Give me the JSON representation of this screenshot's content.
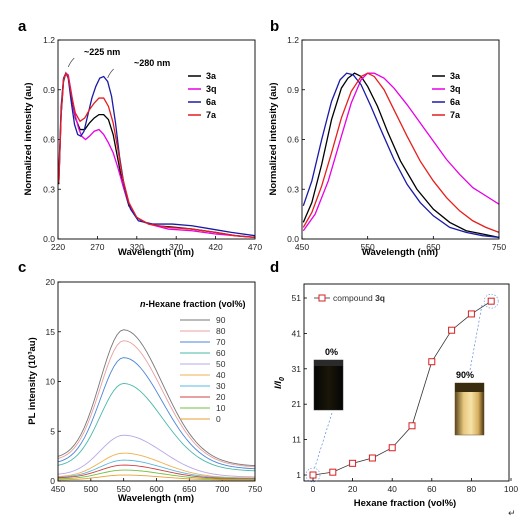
{
  "panels": [
    "a",
    "b",
    "c",
    "d"
  ],
  "corner_mark": "↵",
  "chart_data": [
    {
      "panel": "a",
      "type": "line",
      "xlabel": "Wavelength (nm)",
      "ylabel": "Normalized intensity (au)",
      "xlim": [
        220,
        470
      ],
      "ylim": [
        0,
        1.2
      ],
      "xticks": [
        220,
        270,
        320,
        370,
        420,
        470
      ],
      "yticks": [
        0.0,
        0.3,
        0.6,
        0.9,
        1.2
      ],
      "annotations": [
        "~225 nm",
        "~280 nm"
      ],
      "annotation_x": [
        233,
        283
      ],
      "legend_position": "top-right",
      "series": [
        {
          "name": "3a",
          "color": "#000000",
          "points": [
            [
              221,
              0.33
            ],
            [
              224,
              0.75
            ],
            [
              227,
              0.95
            ],
            [
              230,
              1.0
            ],
            [
              233,
              0.98
            ],
            [
              237,
              0.86
            ],
            [
              242,
              0.73
            ],
            [
              248,
              0.66
            ],
            [
              254,
              0.66
            ],
            [
              260,
              0.7
            ],
            [
              266,
              0.73
            ],
            [
              272,
              0.75
            ],
            [
              278,
              0.75
            ],
            [
              284,
              0.72
            ],
            [
              290,
              0.63
            ],
            [
              296,
              0.48
            ],
            [
              302,
              0.33
            ],
            [
              310,
              0.2
            ],
            [
              320,
              0.13
            ],
            [
              330,
              0.1
            ],
            [
              345,
              0.08
            ],
            [
              370,
              0.07
            ],
            [
              390,
              0.06
            ],
            [
              420,
              0.04
            ],
            [
              445,
              0.02
            ],
            [
              470,
              0.01
            ]
          ]
        },
        {
          "name": "3q",
          "color": "#e600e6",
          "points": [
            [
              221,
              0.34
            ],
            [
              224,
              0.76
            ],
            [
              227,
              0.96
            ],
            [
              230,
              1.0
            ],
            [
              233,
              0.99
            ],
            [
              237,
              0.88
            ],
            [
              241,
              0.76
            ],
            [
              246,
              0.67
            ],
            [
              250,
              0.62
            ],
            [
              255,
              0.6
            ],
            [
              260,
              0.62
            ],
            [
              266,
              0.65
            ],
            [
              272,
              0.66
            ],
            [
              278,
              0.63
            ],
            [
              284,
              0.58
            ],
            [
              290,
              0.52
            ],
            [
              296,
              0.43
            ],
            [
              302,
              0.33
            ],
            [
              310,
              0.21
            ],
            [
              320,
              0.13
            ],
            [
              335,
              0.09
            ],
            [
              360,
              0.06
            ],
            [
              390,
              0.05
            ],
            [
              420,
              0.03
            ],
            [
              445,
              0.02
            ],
            [
              470,
              0.01
            ]
          ]
        },
        {
          "name": "6a",
          "color": "#1a1aa6",
          "points": [
            [
              221,
              0.38
            ],
            [
              224,
              0.8
            ],
            [
              227,
              0.97
            ],
            [
              230,
              1.0
            ],
            [
              233,
              0.97
            ],
            [
              237,
              0.82
            ],
            [
              241,
              0.69
            ],
            [
              245,
              0.63
            ],
            [
              249,
              0.62
            ],
            [
              253,
              0.65
            ],
            [
              258,
              0.75
            ],
            [
              263,
              0.85
            ],
            [
              268,
              0.92
            ],
            [
              273,
              0.97
            ],
            [
              278,
              0.98
            ],
            [
              283,
              0.95
            ],
            [
              288,
              0.86
            ],
            [
              293,
              0.7
            ],
            [
              298,
              0.5
            ],
            [
              304,
              0.32
            ],
            [
              312,
              0.18
            ],
            [
              322,
              0.11
            ],
            [
              340,
              0.09
            ],
            [
              365,
              0.09
            ],
            [
              390,
              0.08
            ],
            [
              415,
              0.06
            ],
            [
              440,
              0.04
            ],
            [
              470,
              0.02
            ]
          ]
        },
        {
          "name": "7a",
          "color": "#e61e1e",
          "points": [
            [
              221,
              0.34
            ],
            [
              224,
              0.76
            ],
            [
              227,
              0.96
            ],
            [
              230,
              1.0
            ],
            [
              233,
              0.98
            ],
            [
              237,
              0.87
            ],
            [
              242,
              0.76
            ],
            [
              248,
              0.71
            ],
            [
              254,
              0.73
            ],
            [
              260,
              0.78
            ],
            [
              266,
              0.82
            ],
            [
              272,
              0.85
            ],
            [
              278,
              0.85
            ],
            [
              284,
              0.8
            ],
            [
              290,
              0.7
            ],
            [
              296,
              0.54
            ],
            [
              302,
              0.37
            ],
            [
              310,
              0.22
            ],
            [
              320,
              0.13
            ],
            [
              335,
              0.09
            ],
            [
              360,
              0.07
            ],
            [
              390,
              0.06
            ],
            [
              420,
              0.04
            ],
            [
              445,
              0.02
            ],
            [
              470,
              0.01
            ]
          ]
        }
      ]
    },
    {
      "panel": "b",
      "type": "line",
      "xlabel": "Wavelength (nm)",
      "ylabel": "Normalized intensity (au)",
      "xlim": [
        450,
        750
      ],
      "ylim": [
        0,
        1.2
      ],
      "xticks": [
        450,
        550,
        650,
        750
      ],
      "yticks": [
        0.0,
        0.3,
        0.6,
        0.9,
        1.2
      ],
      "legend_position": "top-right",
      "series": [
        {
          "name": "3a",
          "color": "#000000",
          "points": [
            [
              452,
              0.1
            ],
            [
              465,
              0.22
            ],
            [
              480,
              0.45
            ],
            [
              495,
              0.72
            ],
            [
              510,
              0.91
            ],
            [
              520,
              0.97
            ],
            [
              530,
              1.0
            ],
            [
              540,
              0.98
            ],
            [
              550,
              0.92
            ],
            [
              565,
              0.8
            ],
            [
              580,
              0.65
            ],
            [
              600,
              0.47
            ],
            [
              625,
              0.3
            ],
            [
              650,
              0.18
            ],
            [
              675,
              0.1
            ],
            [
              700,
              0.05
            ],
            [
              725,
              0.03
            ],
            [
              750,
              0.01
            ]
          ]
        },
        {
          "name": "3q",
          "color": "#e600e6",
          "points": [
            [
              452,
              0.05
            ],
            [
              470,
              0.15
            ],
            [
              490,
              0.35
            ],
            [
              510,
              0.62
            ],
            [
              525,
              0.82
            ],
            [
              540,
              0.96
            ],
            [
              550,
              1.0
            ],
            [
              560,
              1.0
            ],
            [
              575,
              0.97
            ],
            [
              590,
              0.91
            ],
            [
              610,
              0.81
            ],
            [
              630,
              0.7
            ],
            [
              650,
              0.59
            ],
            [
              670,
              0.48
            ],
            [
              690,
              0.39
            ],
            [
              710,
              0.31
            ],
            [
              730,
              0.26
            ],
            [
              750,
              0.21
            ]
          ]
        },
        {
          "name": "6a",
          "color": "#1a1aa6",
          "points": [
            [
              452,
              0.2
            ],
            [
              465,
              0.35
            ],
            [
              480,
              0.6
            ],
            [
              495,
              0.83
            ],
            [
              508,
              0.96
            ],
            [
              518,
              1.0
            ],
            [
              528,
              0.99
            ],
            [
              540,
              0.93
            ],
            [
              555,
              0.8
            ],
            [
              570,
              0.66
            ],
            [
              590,
              0.48
            ],
            [
              610,
              0.33
            ],
            [
              630,
              0.22
            ],
            [
              650,
              0.14
            ],
            [
              675,
              0.07
            ],
            [
              700,
              0.04
            ],
            [
              725,
              0.02
            ],
            [
              750,
              0.01
            ]
          ]
        },
        {
          "name": "7a",
          "color": "#e61e1e",
          "points": [
            [
              452,
              0.07
            ],
            [
              465,
              0.16
            ],
            [
              480,
              0.32
            ],
            [
              495,
              0.52
            ],
            [
              510,
              0.73
            ],
            [
              525,
              0.89
            ],
            [
              540,
              0.98
            ],
            [
              550,
              1.0
            ],
            [
              560,
              0.98
            ],
            [
              575,
              0.9
            ],
            [
              590,
              0.78
            ],
            [
              610,
              0.62
            ],
            [
              630,
              0.47
            ],
            [
              650,
              0.35
            ],
            [
              670,
              0.25
            ],
            [
              690,
              0.17
            ],
            [
              710,
              0.11
            ],
            [
              730,
              0.07
            ],
            [
              750,
              0.04
            ]
          ]
        }
      ]
    },
    {
      "panel": "c",
      "type": "line",
      "xlabel": "Wavelength (nm)",
      "ylabel": "PL intensity (10³au)",
      "xlim": [
        450,
        750
      ],
      "ylim": [
        0,
        20
      ],
      "xticks": [
        450,
        500,
        550,
        600,
        650,
        700,
        750
      ],
      "yticks": [
        0,
        5,
        10,
        15,
        20
      ],
      "legend_title_italic": "n",
      "legend_title": "-Hexane fraction (vol%)",
      "legend_position": "top-right",
      "series": [
        {
          "name": "90",
          "color": "#777777",
          "peak": 15.2,
          "base_start": 2.2,
          "base_end": 1.5
        },
        {
          "name": "80",
          "color": "#e8a0a0",
          "peak": 14.1,
          "base_start": 2.0,
          "base_end": 1.4
        },
        {
          "name": "70",
          "color": "#4a86d8",
          "peak": 12.4,
          "base_start": 1.7,
          "base_end": 1.2
        },
        {
          "name": "60",
          "color": "#4ab8a8",
          "peak": 9.8,
          "base_start": 1.4,
          "base_end": 1.0
        },
        {
          "name": "50",
          "color": "#b8a8e8",
          "peak": 4.6,
          "base_start": 0.6,
          "base_end": 0.4
        },
        {
          "name": "40",
          "color": "#f0b050",
          "peak": 2.8,
          "base_start": 0.4,
          "base_end": 0.3
        },
        {
          "name": "30",
          "color": "#58b8e0",
          "peak": 2.1,
          "base_start": 0.35,
          "base_end": 0.25
        },
        {
          "name": "20",
          "color": "#d04040",
          "peak": 1.6,
          "base_start": 0.3,
          "base_end": 0.2
        },
        {
          "name": "10",
          "color": "#70c040",
          "peak": 1.1,
          "base_start": 0.2,
          "base_end": 0.15
        },
        {
          "name": "0",
          "color": "#e8a030",
          "peak": 0.6,
          "base_start": 0.1,
          "base_end": 0.1
        }
      ],
      "peak_wavelength": 550
    },
    {
      "panel": "d",
      "type": "scatter",
      "xlabel": "Hexane fraction (vol%)",
      "ylabel_main": "I/I",
      "ylabel_sub": "0",
      "xlim": [
        0,
        100
      ],
      "ylim": [
        1,
        51
      ],
      "xticks": [
        0,
        20,
        40,
        60,
        80,
        100
      ],
      "yticks": [
        1,
        11,
        21,
        31,
        41,
        51
      ],
      "legend_prefix": "compound ",
      "legend_compound": "3q",
      "legend_position": "top-left",
      "series": [
        {
          "name": "3q",
          "color": "#d62020",
          "x": [
            0,
            10,
            20,
            30,
            40,
            50,
            60,
            70,
            80,
            90
          ],
          "y": [
            1.0,
            1.8,
            4.3,
            5.8,
            8.7,
            14.9,
            33.0,
            41.9,
            46.5,
            50.1
          ]
        }
      ],
      "insets": [
        {
          "label": "0%",
          "style": "dark vial (no emission)"
        },
        {
          "label": "90%",
          "style": "yellow emissive vial"
        }
      ]
    }
  ]
}
